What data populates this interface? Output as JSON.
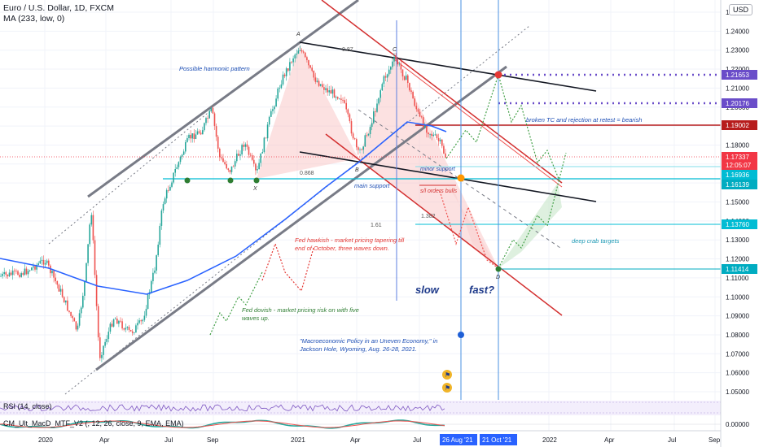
{
  "header": {
    "symbol": "Euro / U.S. Dollar, 1D, FXCM",
    "indicator": "MA (233, low, 0)",
    "currency_button": "USD",
    "rsi_label": "RSI (14, close)",
    "macd_label": "CM_Ult_MacD_MTF_V2 (, 12, 26, close, 9, EMA, EMA)"
  },
  "price_axis": {
    "ticks": [
      "1.25000",
      "1.24000",
      "1.23000",
      "1.22000",
      "1.21000",
      "1.20000",
      "1.19000",
      "1.18000",
      "1.17000",
      "1.16000",
      "1.15000",
      "1.14000",
      "1.13000",
      "1.12000",
      "1.11000",
      "1.10000",
      "1.09000",
      "1.08000",
      "1.07000",
      "1.06000",
      "1.05000"
    ],
    "badges": [
      {
        "value": "1.21653",
        "color": "#6a4dc9"
      },
      {
        "value": "1.20176",
        "color": "#6a4dc9"
      },
      {
        "value": "1.19002",
        "color": "#b71c1c"
      },
      {
        "value": "1.17337",
        "color": "#f23645"
      },
      {
        "value": "12:05:07",
        "color": "#f23645"
      },
      {
        "value": "1.16936",
        "color": "#00bcd4"
      },
      {
        "value": "1.16139",
        "color": "#00acc1"
      },
      {
        "value": "1.13760",
        "color": "#00bcd4"
      },
      {
        "value": "1.11414",
        "color": "#00acc1"
      }
    ],
    "macd_zero": "0.00000"
  },
  "time_axis": {
    "ticks": [
      "2020",
      "Apr",
      "Jul",
      "Sep",
      "2021",
      "Apr",
      "Jul",
      "2022",
      "Apr",
      "Jul",
      "Sep"
    ],
    "markers": [
      "26 Aug '21",
      "21 Oct '21"
    ]
  },
  "annotations": {
    "harmonic": "Possible harmonic pattern",
    "pt_a": "A",
    "pt_b": "B",
    "pt_c": "C",
    "pt_d": "D",
    "pt_x": "X",
    "fib_top": "0.87",
    "fib_mid": "0.868",
    "fib_161": "1.61",
    "fib_1382": "1.382",
    "main_support": "main support",
    "minor_support": "minor support",
    "sl_orders": "s/l orders bulls",
    "broken_tc": "broken TC and rejection at retest = bearish",
    "deep_crab": "deep crab targets",
    "fed_hawk": "Fed hawkish - market pricing tapering till end of October, three waves down.",
    "fed_dove": "Fed dovish - market pricing risk on with five waves up.",
    "jackson": "\"Macroeconomic Policy in an Uneven Economy,\" in Jackson Hole, Wyoming, Aug. 26-28, 2021.",
    "slow": "slow",
    "fast": "fast?"
  },
  "colors": {
    "up_candle": "#26a69a",
    "down_candle": "#ef5350",
    "ma": "#2962ff",
    "channel": "#787b86",
    "red_line": "#d32f2f",
    "pattern_fill": "#f8bcbc",
    "cyan": "#00bcd4",
    "purple": "#6a4dc9",
    "blue_marker": "#4a90e2"
  },
  "chart_data": {
    "type": "candlestick",
    "symbol": "EURUSD",
    "timeframe": "1D",
    "ylim": [
      1.045,
      1.255
    ],
    "key_levels": [
      1.21653,
      1.20176,
      1.19002,
      1.17337,
      1.16936,
      1.16139,
      1.1376,
      1.11414
    ],
    "x": [
      "2020-01",
      "2020-03",
      "2020-05",
      "2020-07",
      "2020-09",
      "2020-11",
      "2021-01",
      "2021-03",
      "2021-05",
      "2021-07",
      "2021-08",
      "2021-10"
    ],
    "close_path": [
      1.112,
      1.082,
      1.09,
      1.135,
      1.18,
      1.175,
      1.231,
      1.18,
      1.225,
      1.175,
      1.173,
      1.114
    ],
    "ma_233_low": [
      1.105,
      1.103,
      1.1,
      1.106,
      1.12,
      1.135,
      1.15,
      1.17,
      1.18,
      1.18,
      1.178,
      1.17
    ]
  }
}
